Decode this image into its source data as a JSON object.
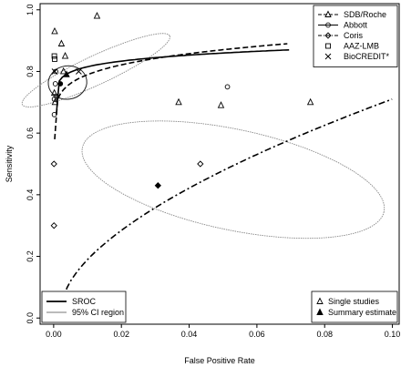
{
  "chart_data": {
    "type": "scatter",
    "xlabel": "False Positive Rate",
    "ylabel": "Sensitivity",
    "xlim": [
      -0.004,
      0.102
    ],
    "ylim": [
      -0.02,
      1.02
    ],
    "xticks": [
      "0.00",
      "0.02",
      "0.04",
      "0.06",
      "0.08",
      "0.10"
    ],
    "xtick_values": [
      0,
      0.02,
      0.04,
      0.06,
      0.08,
      0.1
    ],
    "yticks": [
      "0.0",
      "0.2",
      "0.4",
      "0.6",
      "0.8",
      "1.0"
    ],
    "ytick_values": [
      0,
      0.2,
      0.4,
      0.6,
      0.8,
      1.0
    ],
    "grid": false,
    "series": [
      {
        "name": "SDB/Roche",
        "marker": "triangle",
        "line": "dashed",
        "points": [
          [
            0.0003,
            0.93
          ],
          [
            0.0023,
            0.89
          ],
          [
            0.0034,
            0.85
          ],
          [
            0.0029,
            0.8
          ],
          [
            0.0002,
            0.73
          ],
          [
            0.0004,
            0.7
          ],
          [
            0.0128,
            0.98
          ],
          [
            0.0369,
            0.7
          ],
          [
            0.0494,
            0.69
          ],
          [
            0.0758,
            0.7
          ]
        ],
        "summary": [
          0.0038,
          0.79
        ],
        "sroc": {
          "start": [
            0.0003,
            0.58
          ],
          "end": [
            0.069,
            0.89
          ],
          "a": 0.2
        },
        "ci_region": {
          "cx": 0.0125,
          "cy": 0.804,
          "rx": 0.024,
          "ry": 0.047,
          "rotation_deg": -25
        }
      },
      {
        "name": "Abbott",
        "marker": "circle",
        "line": "solid",
        "points": [
          [
            0.0002,
            0.66
          ],
          [
            0.0002,
            0.71
          ],
          [
            0.0006,
            0.8
          ],
          [
            0.0007,
            0.72
          ],
          [
            0.0005,
            0.76
          ],
          [
            0.0513,
            0.75
          ]
        ],
        "summary": [
          0.002,
          0.76
        ],
        "sroc": {
          "start": [
            0.0008,
            0.66
          ],
          "end": [
            0.0695,
            0.87
          ],
          "a": 0.15
        },
        "ci_region": {
          "cx": 0.0041,
          "cy": 0.764,
          "rx": 0.0057,
          "ry": 0.054,
          "rotation_deg": -8
        }
      },
      {
        "name": "Coris",
        "marker": "diamond",
        "line": "dashdot",
        "points": [
          [
            0.0001,
            0.5
          ],
          [
            0.0001,
            0.3
          ],
          [
            0.0433,
            0.5
          ]
        ],
        "summary": [
          0.0308,
          0.43
        ],
        "sroc": {
          "start": [
            0.0027,
            0.05
          ],
          "end": [
            0.0999,
            0.71
          ],
          "a": 0.6
        },
        "ci_region": {
          "cx": 0.053,
          "cy": 0.449,
          "rx": 0.0455,
          "ry": 0.163,
          "rotation_deg": 12
        }
      },
      {
        "name": "AAZ-LMB",
        "marker": "square",
        "line": "none",
        "points": [
          [
            0.0002,
            0.85
          ],
          [
            0.0003,
            0.84
          ]
        ],
        "summary": null
      },
      {
        "name": "BioCREDIT*",
        "marker": "x",
        "line": "none",
        "points": [
          [
            0.0003,
            0.8
          ]
        ],
        "summary": [
          0.0074,
          0.8
        ]
      }
    ],
    "legend_series": {
      "position": "top-right",
      "entries": [
        {
          "label": "SDB/Roche",
          "marker": "triangle",
          "line": "dashed"
        },
        {
          "label": "Abbott",
          "marker": "circle",
          "line": "solid"
        },
        {
          "label": "Coris",
          "marker": "diamond",
          "line": "dashdot"
        },
        {
          "label": "AAZ-LMB",
          "marker": "square",
          "line": "none"
        },
        {
          "label": "BioCREDIT*",
          "marker": "x",
          "line": "none"
        }
      ]
    },
    "legend_lines": {
      "position": "bottom-left",
      "entries": [
        {
          "label": "SROC",
          "style": "thick"
        },
        {
          "label": "95% CI region",
          "style": "thin"
        }
      ]
    },
    "legend_markers": {
      "position": "bottom-right",
      "entries": [
        {
          "label": "Single studies",
          "marker": "triangle-open"
        },
        {
          "label": "Summary estimate",
          "marker": "triangle-filled"
        }
      ]
    }
  }
}
